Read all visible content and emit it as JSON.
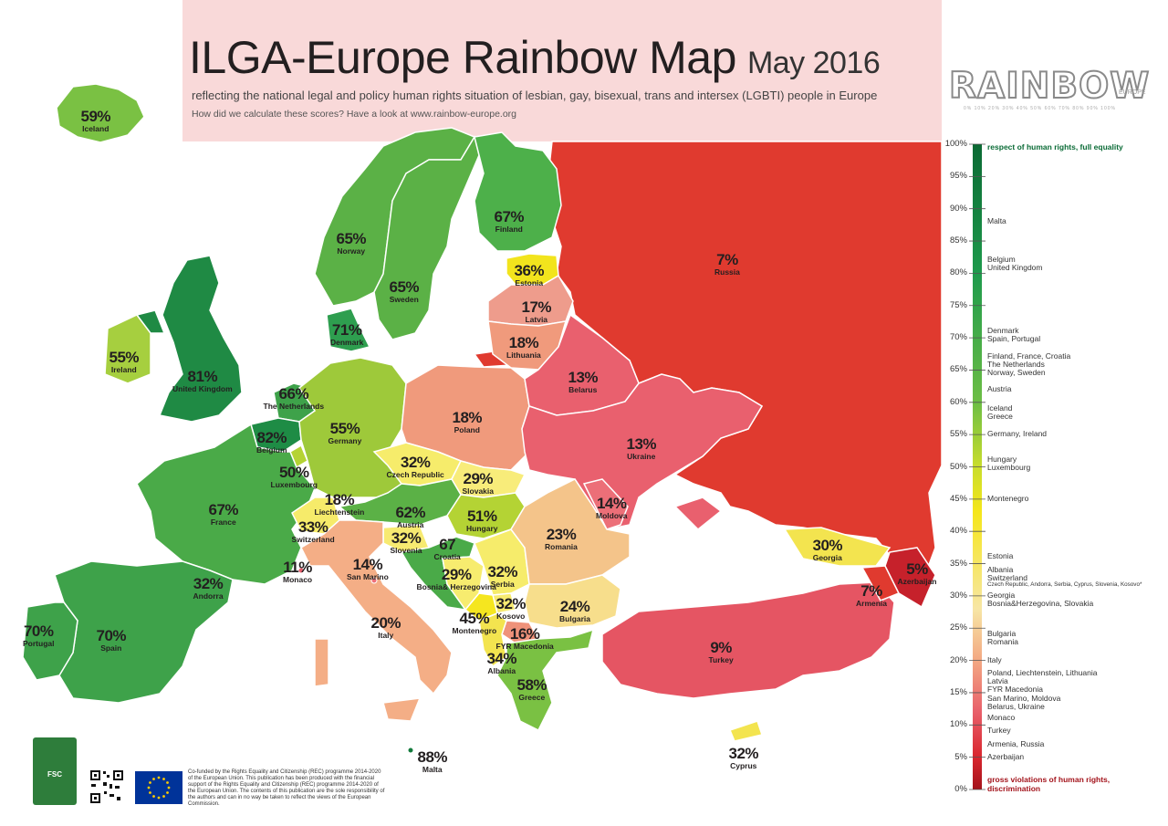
{
  "title": "ILGA-Europe Rainbow Map",
  "date": "May 2016",
  "subtitle": "reflecting the national legal and policy human rights situation of lesbian, gay, bisexual, trans and intersex (LGBTI) people in Europe",
  "howto": "How did we calculate these scores? Have a look at www.rainbow-europe.org",
  "logo": {
    "word": "RAINBOW",
    "sub": "EUROPE",
    "scale": "0%  10%  20%  30%  40%  50%  60%  70%  80%  90%  100%"
  },
  "colors": {
    "background_top": "#f9d9d9",
    "russia": "#e03a2f",
    "water": "#ffffff",
    "land_outline": "#ffffff"
  },
  "countries": [
    {
      "name": "Iceland",
      "pct": "59%"
    },
    {
      "name": "Norway",
      "pct": "65%"
    },
    {
      "name": "Sweden",
      "pct": "65%"
    },
    {
      "name": "Finland",
      "pct": "67%"
    },
    {
      "name": "Estonia",
      "pct": "36%"
    },
    {
      "name": "Latvia",
      "pct": "17%"
    },
    {
      "name": "Lithuania",
      "pct": "18%"
    },
    {
      "name": "Russia",
      "pct": "7%"
    },
    {
      "name": "Denmark",
      "pct": "71%"
    },
    {
      "name": "Ireland",
      "pct": "55%"
    },
    {
      "name": "United Kingdom",
      "pct": "81%"
    },
    {
      "name": "The Netherlands",
      "pct": "66%"
    },
    {
      "name": "Belgium",
      "pct": "82%"
    },
    {
      "name": "Luxembourg",
      "pct": "50%"
    },
    {
      "name": "Germany",
      "pct": "55%"
    },
    {
      "name": "Poland",
      "pct": "18%"
    },
    {
      "name": "Belarus",
      "pct": "13%"
    },
    {
      "name": "Ukraine",
      "pct": "13%"
    },
    {
      "name": "Czech Republic",
      "pct": "32%"
    },
    {
      "name": "Slovakia",
      "pct": "29%"
    },
    {
      "name": "Moldova",
      "pct": "14%"
    },
    {
      "name": "France",
      "pct": "67%"
    },
    {
      "name": "Liechtenstein",
      "pct": "18%"
    },
    {
      "name": "Austria",
      "pct": "62%"
    },
    {
      "name": "Hungary",
      "pct": "51%"
    },
    {
      "name": "Switzerland",
      "pct": "33%"
    },
    {
      "name": "Slovenia",
      "pct": "32%"
    },
    {
      "name": "Croatia",
      "pct": "67"
    },
    {
      "name": "Romania",
      "pct": "23%"
    },
    {
      "name": "Monaco",
      "pct": "11%"
    },
    {
      "name": "San Marino",
      "pct": "14%"
    },
    {
      "name": "Bosnia& Herzegovina",
      "pct": "29%"
    },
    {
      "name": "Serbia",
      "pct": "32%"
    },
    {
      "name": "Andorra",
      "pct": "32%"
    },
    {
      "name": "Kosovo",
      "pct": "32%"
    },
    {
      "name": "Montenegro",
      "pct": "45%"
    },
    {
      "name": "Bulgaria",
      "pct": "24%"
    },
    {
      "name": "Italy",
      "pct": "20%"
    },
    {
      "name": "FYR Macedonia",
      "pct": "16%"
    },
    {
      "name": "Albania",
      "pct": "34%"
    },
    {
      "name": "Greece",
      "pct": "58%"
    },
    {
      "name": "Portugal",
      "pct": "70%"
    },
    {
      "name": "Spain",
      "pct": "70%"
    },
    {
      "name": "Georgia",
      "pct": "30%"
    },
    {
      "name": "Azerbaijan",
      "pct": "5%"
    },
    {
      "name": "Armenia",
      "pct": "7%"
    },
    {
      "name": "Turkey",
      "pct": "9%"
    },
    {
      "name": "Malta",
      "pct": "88%"
    },
    {
      "name": "Cyprus",
      "pct": "32%"
    }
  ],
  "legend": {
    "top_label": "respect of human rights, full equality",
    "bottom_label": "gross violations of human rights, discrimination",
    "ticks": [
      "100%",
      "95%",
      "90%",
      "85%",
      "80%",
      "75%",
      "70%",
      "65%",
      "60%",
      "55%",
      "50%",
      "45%",
      "40%",
      "35%",
      "30%",
      "25%",
      "20%",
      "15%",
      "10%",
      "5%",
      "0%"
    ],
    "entries": [
      {
        "pct": 88,
        "text": "Malta"
      },
      {
        "pct": 82,
        "text": "Belgium"
      },
      {
        "pct": 81,
        "text": "United Kingdom"
      },
      {
        "pct": 71,
        "text": "Denmark"
      },
      {
        "pct": 70,
        "text": "Spain, Portugal"
      },
      {
        "pct": 67,
        "text": "Finland, France, Croatia"
      },
      {
        "pct": 66,
        "text": "The Netherlands"
      },
      {
        "pct": 65,
        "text": "Norway, Sweden"
      },
      {
        "pct": 62,
        "text": "Austria"
      },
      {
        "pct": 59,
        "text": "Iceland"
      },
      {
        "pct": 58,
        "text": "Greece"
      },
      {
        "pct": 55,
        "text": "Germany, Ireland"
      },
      {
        "pct": 51,
        "text": "Hungary"
      },
      {
        "pct": 50,
        "text": "Luxembourg"
      },
      {
        "pct": 45,
        "text": "Montenegro"
      },
      {
        "pct": 36,
        "text": "Estonia"
      },
      {
        "pct": 34,
        "text": "Albania"
      },
      {
        "pct": 33,
        "text": "Switzerland"
      },
      {
        "pct": 32,
        "text": "Czech Republic, Andorra, Serbia, Cyprus, Slovenia, Kosovo*"
      },
      {
        "pct": 30,
        "text": "Georgia"
      },
      {
        "pct": 29,
        "text": "Bosnia&Herzegovina, Slovakia"
      },
      {
        "pct": 24,
        "text": "Bulgaria"
      },
      {
        "pct": 23,
        "text": "Romania"
      },
      {
        "pct": 20,
        "text": "Italy"
      },
      {
        "pct": 18,
        "text": "Poland, Liechtenstein, Lithuania"
      },
      {
        "pct": 17,
        "text": "Latvia"
      },
      {
        "pct": 16,
        "text": "FYR Macedonia"
      },
      {
        "pct": 14,
        "text": "San Marino, Moldova"
      },
      {
        "pct": 13,
        "text": "Belarus, Ukraine"
      },
      {
        "pct": 11,
        "text": "Monaco"
      },
      {
        "pct": 9,
        "text": "Turkey"
      },
      {
        "pct": 7,
        "text": "Armenia, Russia"
      },
      {
        "pct": 5,
        "text": "Azerbaijan"
      }
    ]
  },
  "footer": {
    "text": "Co-funded by the Rights Equality and Citizenship (REC) programme 2014-2020 of the European Union. This publication has been produced with the financial support of the Rights Equality and Citizenship (REC) programme 2014-2020 of the European Union. The contents of this publication are the sole responsibility of the authors and can in no way be taken to reflect the views of the European Commission.",
    "fsc_label": "FSC"
  }
}
